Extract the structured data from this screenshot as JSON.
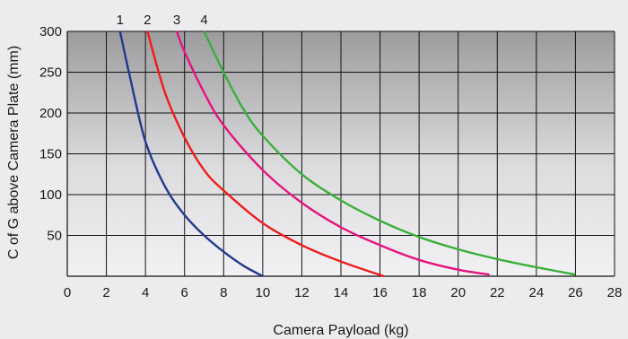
{
  "chart_data": {
    "type": "line",
    "xlabel": "Camera Payload (kg)",
    "ylabel": "C of G above Camera Plate (mm)",
    "xlim": [
      0,
      28
    ],
    "ylim": [
      0,
      300
    ],
    "xticks": [
      "0",
      "2",
      "4",
      "6",
      "8",
      "10",
      "12",
      "14",
      "16",
      "18",
      "20",
      "22",
      "24",
      "26",
      "28"
    ],
    "yticks": [
      "50",
      "100",
      "150",
      "200",
      "250",
      "300"
    ],
    "grid": true,
    "series": [
      {
        "name": "1",
        "color": "#213a8f",
        "x": [
          2.7,
          3.2,
          4.0,
          5.0,
          6.0,
          7.0,
          8.0,
          9.0,
          10.0
        ],
        "y": [
          300,
          245,
          165,
          110,
          75,
          50,
          30,
          13,
          0
        ]
      },
      {
        "name": "2",
        "color": "#ee1c1c",
        "x": [
          4.1,
          5.0,
          6.0,
          7.0,
          8.0,
          10.0,
          12.0,
          14.0,
          16.2
        ],
        "y": [
          300,
          225,
          170,
          130,
          105,
          65,
          38,
          18,
          0
        ]
      },
      {
        "name": "3",
        "color": "#e6137f",
        "x": [
          5.6,
          6.0,
          7.0,
          8.0,
          10.0,
          12.0,
          14.0,
          16.0,
          18.0,
          20.0,
          21.6
        ],
        "y": [
          300,
          275,
          225,
          185,
          130,
          90,
          60,
          38,
          20,
          8,
          2
        ]
      },
      {
        "name": "4",
        "color": "#3aaf3a",
        "x": [
          7.0,
          8.0,
          9.0,
          10.0,
          12.0,
          14.0,
          16.0,
          18.0,
          20.0,
          22.0,
          24.0,
          26.0
        ],
        "y": [
          300,
          250,
          205,
          172,
          125,
          93,
          68,
          48,
          33,
          21,
          11,
          2
        ]
      }
    ]
  }
}
